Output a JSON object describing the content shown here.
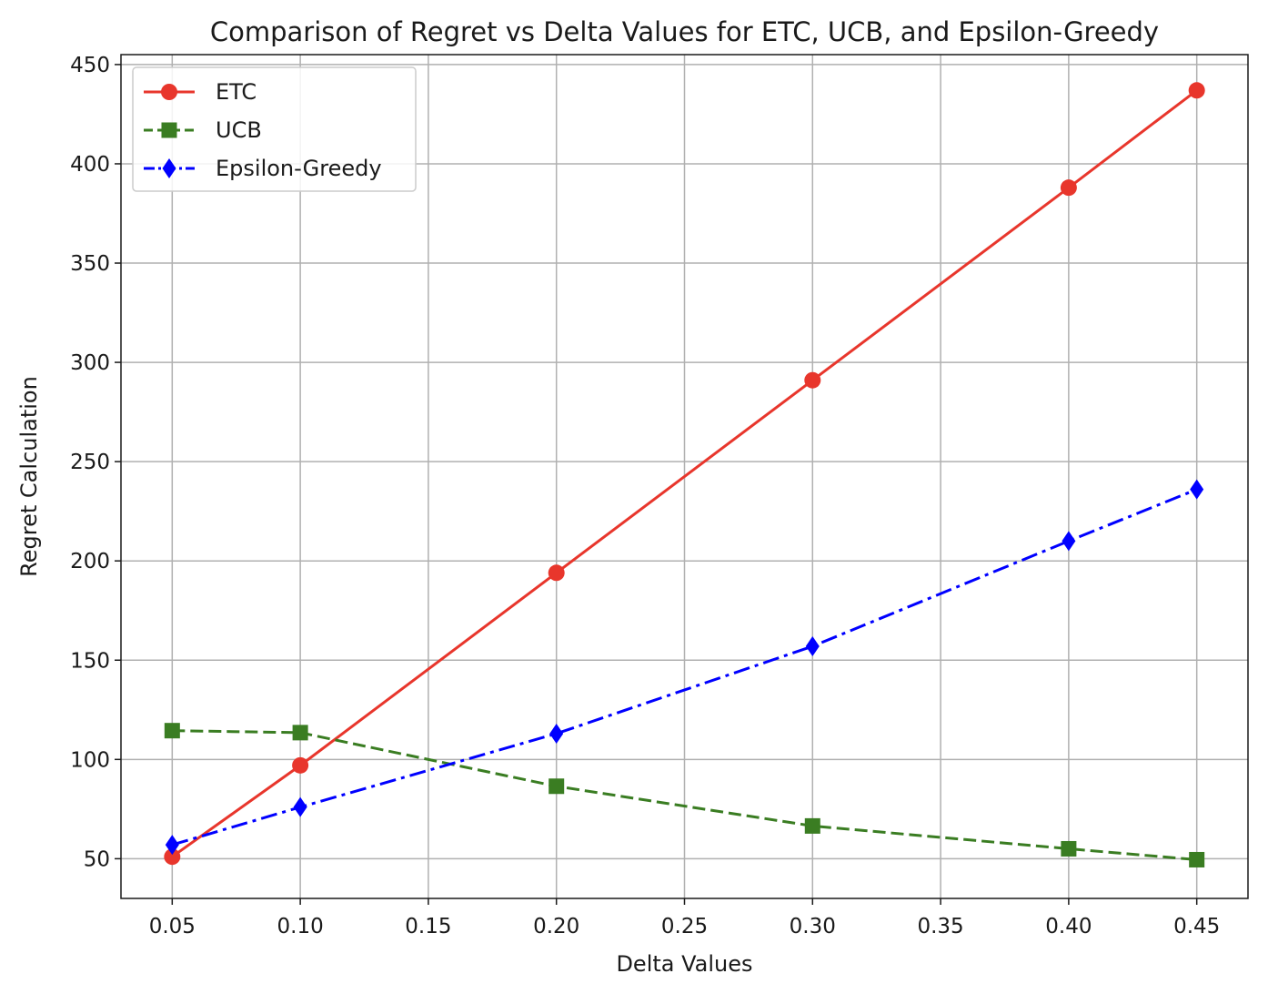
{
  "chart_data": {
    "type": "line",
    "title": "Comparison of Regret vs Delta Values for ETC, UCB, and Epsilon-Greedy",
    "xlabel": "Delta Values",
    "ylabel": "Regret Calculation",
    "x": [
      0.05,
      0.1,
      0.2,
      0.3,
      0.4,
      0.45
    ],
    "xlim": [
      0.03,
      0.47
    ],
    "ylim": [
      30,
      455
    ],
    "xticks": [
      "0.05",
      "0.10",
      "0.15",
      "0.20",
      "0.25",
      "0.30",
      "0.35",
      "0.40",
      "0.45"
    ],
    "xtick_values": [
      0.05,
      0.1,
      0.15,
      0.2,
      0.25,
      0.3,
      0.35,
      0.4,
      0.45
    ],
    "yticks": [
      "50",
      "100",
      "150",
      "200",
      "250",
      "300",
      "350",
      "400",
      "450"
    ],
    "ytick_values": [
      50,
      100,
      150,
      200,
      250,
      300,
      350,
      400,
      450
    ],
    "grid": true,
    "legend_position": "top-left",
    "series": [
      {
        "name": "ETC",
        "values": [
          51,
          97,
          194,
          291,
          388,
          437
        ],
        "color": "#e8362c",
        "line_style": "solid",
        "marker": "circle"
      },
      {
        "name": "UCB",
        "values": [
          114.5,
          113.5,
          86.5,
          66.5,
          55,
          49.5
        ],
        "color": "#3a7d22",
        "line_style": "dashed",
        "marker": "square"
      },
      {
        "name": "Epsilon-Greedy",
        "values": [
          57,
          76,
          113,
          157,
          210,
          236
        ],
        "color": "#0000ff",
        "line_style": "dashdot",
        "marker": "diamond"
      }
    ]
  }
}
